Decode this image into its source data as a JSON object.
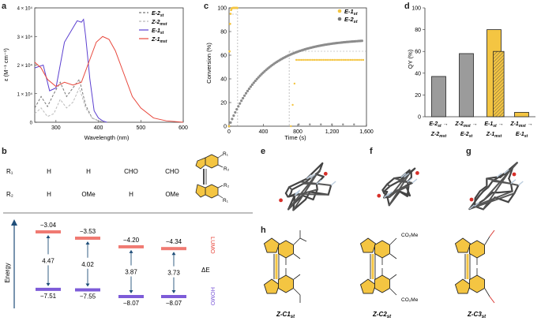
{
  "panels": {
    "a": {
      "letter": "a",
      "xlabel": "Wavelength (nm)",
      "ylabel": "ε (M⁻¹ cm⁻¹)",
      "yticks": [
        "0",
        "1 × 10⁴",
        "2 × 10⁴",
        "3 × 10⁴",
        "4 × 10⁴"
      ],
      "xticks": [
        "300",
        "400",
        "500",
        "600"
      ],
      "legend": [
        {
          "label": "E-2",
          "sub": "st",
          "color": "#777777",
          "dash": "3,2"
        },
        {
          "label": "Z-2",
          "sub": "mst",
          "color": "#bbbbbb",
          "dash": "3,2"
        },
        {
          "label": "E-1",
          "sub": "st",
          "color": "#5b3fd0",
          "dash": ""
        },
        {
          "label": "Z-1",
          "sub": "mst",
          "color": "#e8473c",
          "dash": ""
        }
      ]
    },
    "c": {
      "letter": "c",
      "xlabel": "Time (s)",
      "ylabel": "Conversion (%)",
      "xticks": [
        "0",
        "400",
        "800",
        "1,200",
        "1,600"
      ],
      "yticks": [
        "0",
        "20",
        "40",
        "60",
        "80",
        "100"
      ],
      "legend": [
        {
          "label": "E-1",
          "sub": "st",
          "color": "#f4c542"
        },
        {
          "label": "E-2",
          "sub": "st",
          "color": "#777777"
        }
      ]
    },
    "d": {
      "letter": "d",
      "ylabel": "QY (%)",
      "yticks": [
        "0",
        "20",
        "40",
        "60",
        "80",
        "100"
      ],
      "categories": [
        {
          "top": "E-2",
          "topsub": "st",
          "bot": "Z-2",
          "botsub": "mst"
        },
        {
          "top": "Z-2",
          "topsub": "mst",
          "bot": "E-2",
          "botsub": "st"
        },
        {
          "top": "E-1",
          "topsub": "st",
          "bot": "Z-1",
          "botsub": "mst"
        },
        {
          "top": "Z-1",
          "topsub": "mst",
          "bot": "E-1",
          "botsub": "st"
        }
      ]
    },
    "b": {
      "letter": "b",
      "r1_label": "R₁",
      "r2_label": "R₂",
      "r1": [
        "H",
        "H",
        "CHO",
        "CHO"
      ],
      "r2": [
        "H",
        "OMe",
        "H",
        "OMe"
      ],
      "struct_labels": [
        "R₁",
        "R₂",
        "R₂",
        "R₁"
      ],
      "energy_label": "Energy",
      "lumo_label": "LUMO",
      "homo_label": "HOMO",
      "de_label": "ΔE",
      "lumo": [
        "−3.04",
        "−3.53",
        "−4.20",
        "−4.34"
      ],
      "homo": [
        "−7.51",
        "−7.55",
        "−8.07",
        "−8.07"
      ],
      "gap": [
        "4.47",
        "4.02",
        "3.87",
        "3.73"
      ]
    },
    "e": {
      "letter": "e"
    },
    "f": {
      "letter": "f"
    },
    "g": {
      "letter": "g"
    },
    "h": {
      "letter": "h",
      "compounds": [
        {
          "name": "Z-C1",
          "sub": "st"
        },
        {
          "name": "Z-C2",
          "sub": "st"
        },
        {
          "name": "Z-C3",
          "sub": "st"
        }
      ],
      "co2me": "CO₂Me"
    }
  },
  "colors": {
    "yellow": "#f4c542",
    "gray": "#9b9b9b",
    "purple": "#5b3fd0",
    "red": "#e8473c",
    "lumo_bar": "#f07a72",
    "homo_bar": "#7d5bd8",
    "arrow": "#1f4e79"
  },
  "chart_data": [
    {
      "type": "line",
      "panel": "a",
      "xlabel": "Wavelength (nm)",
      "ylabel": "ε (M⁻¹ cm⁻¹)",
      "xlim": [
        250,
        600
      ],
      "ylim": [
        0,
        40000
      ],
      "series": [
        {
          "name": "E-2st",
          "x": [
            250,
            265,
            280,
            295,
            310,
            325,
            340,
            355,
            370,
            385,
            400,
            420
          ],
          "y": [
            5000,
            9000,
            5500,
            10000,
            14000,
            9000,
            12000,
            15000,
            6000,
            1500,
            500,
            0
          ]
        },
        {
          "name": "Z-2mst",
          "x": [
            250,
            265,
            280,
            295,
            310,
            325,
            340,
            355,
            370,
            385,
            400,
            420
          ],
          "y": [
            3000,
            5000,
            2000,
            3000,
            8000,
            5000,
            7000,
            12000,
            5000,
            1500,
            500,
            0
          ]
        },
        {
          "name": "E-1st",
          "x": [
            250,
            270,
            285,
            300,
            320,
            340,
            350,
            360,
            365,
            370,
            380,
            390,
            400,
            410,
            420
          ],
          "y": [
            19000,
            20000,
            11000,
            12000,
            28000,
            33000,
            35500,
            35000,
            36000,
            30000,
            15000,
            4000,
            1500,
            500,
            0
          ]
        },
        {
          "name": "Z-1mst",
          "x": [
            250,
            265,
            280,
            300,
            320,
            340,
            360,
            380,
            395,
            410,
            425,
            440,
            460,
            480,
            500,
            530,
            560,
            600
          ],
          "y": [
            21000,
            19000,
            15000,
            12500,
            14000,
            13000,
            14000,
            22000,
            28000,
            30000,
            29000,
            25000,
            17000,
            9000,
            5000,
            1500,
            500,
            0
          ]
        }
      ]
    },
    {
      "type": "scatter",
      "panel": "c",
      "xlabel": "Time (s)",
      "ylabel": "Conversion (%)",
      "xlim": [
        0,
        1600
      ],
      "ylim": [
        0,
        100
      ],
      "series": [
        {
          "name": "E-1st",
          "x": [
            0,
            10,
            20,
            40,
            60,
            80,
            100
          ],
          "y": [
            0,
            50,
            99,
            100,
            99,
            100,
            100
          ]
        },
        {
          "name": "E-2st",
          "x": [
            0,
            50,
            100,
            200,
            300,
            400,
            500,
            600,
            700,
            800,
            900,
            1000,
            1100,
            1200,
            1300,
            1400,
            1500
          ],
          "y": [
            0,
            8,
            18,
            32,
            42,
            49,
            54,
            58,
            61,
            64,
            66,
            68,
            69,
            70,
            71,
            72,
            73
          ]
        }
      ]
    },
    {
      "type": "bar",
      "panel": "d",
      "ylabel": "QY (%)",
      "ylim": [
        0,
        100
      ],
      "categories": [
        "E-2st→Z-2mst",
        "Z-2mst→E-2st",
        "E-1st→Z-1mst",
        "Z-1mst→E-1st"
      ],
      "series": [
        {
          "name": "measured",
          "values": [
            37,
            58,
            80,
            4
          ]
        },
        {
          "name": "hatched",
          "values": [
            null,
            null,
            60,
            null
          ]
        }
      ]
    }
  ]
}
